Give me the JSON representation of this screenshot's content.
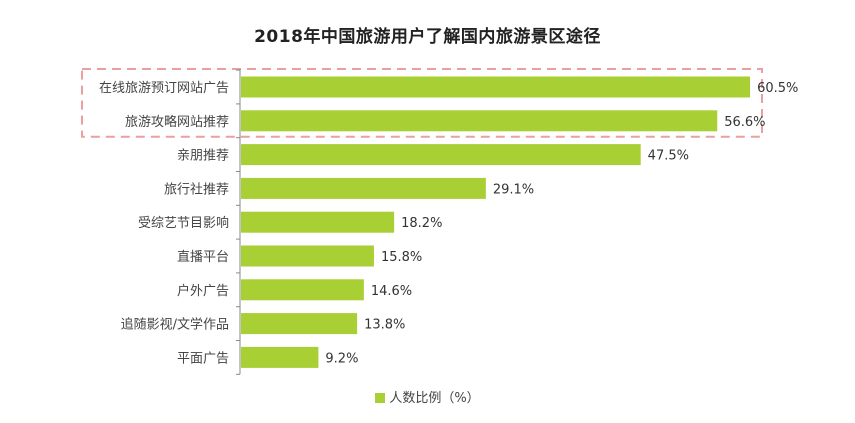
{
  "chart_data": {
    "type": "bar",
    "orientation": "horizontal",
    "title": "2018年中国旅游用户了解国内旅游景区途径",
    "categories": [
      "在线旅游预订网站广告",
      "旅游攻略网站推荐",
      "亲朋推荐",
      "旅行社推荐",
      "受综艺节目影响",
      "直播平台",
      "户外广告",
      "追随影视/文学作品",
      "平面广告"
    ],
    "series": [
      {
        "name": "人数比例（%）",
        "values": [
          60.5,
          56.6,
          47.5,
          29.1,
          18.2,
          15.8,
          14.6,
          13.8,
          9.2
        ],
        "value_labels": [
          "60.5%",
          "56.6%",
          "47.5%",
          "29.1%",
          "18.2%",
          "15.8%",
          "14.6%",
          "13.8%",
          "9.2%"
        ]
      }
    ],
    "xlim": [
      0,
      70
    ],
    "grid": false,
    "legend_position": "bottom-center",
    "highlighted_categories": [
      "在线旅游预订网站广告",
      "旅游攻略网站推荐"
    ]
  },
  "colors": {
    "bar": "#a8cf33",
    "axis": "#888888",
    "highlight_box": "#e8a0a0"
  }
}
